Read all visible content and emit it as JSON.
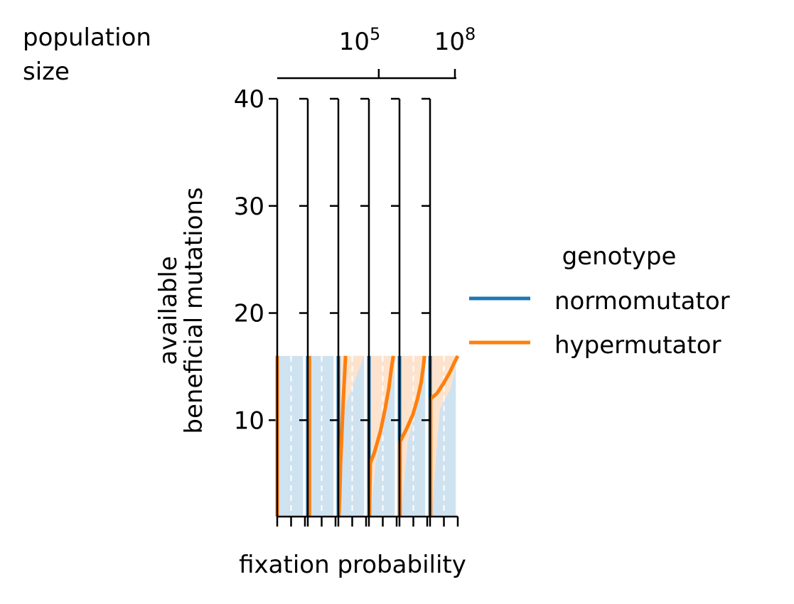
{
  "colors": {
    "normomutator": "#1f77b4",
    "hypermutator": "#ff7f0e",
    "normomutator_fill": "#cfe2f0",
    "hypermutator_fill": "#fde3cd",
    "axis": "#000000",
    "background": "#ffffff"
  },
  "chart_data": {
    "type": "line",
    "title": "",
    "top_axis": {
      "label_lines": [
        "population",
        "size"
      ],
      "scale": "log",
      "tick_labels": [
        {
          "base": "10",
          "exp": "5",
          "value": 100000
        },
        {
          "base": "10",
          "exp": "8",
          "value": 100000000
        }
      ],
      "range": [
        10,
        100000000
      ]
    },
    "yaxis": {
      "label_lines": [
        "available",
        "beneficial mutations"
      ],
      "ticks": [
        10,
        20,
        30,
        40
      ],
      "tick_labels": [
        "10",
        "20",
        "30",
        "40"
      ],
      "range": [
        1,
        40
      ]
    },
    "xaxis": {
      "label": "fixation probability",
      "range": [
        0,
        1
      ],
      "minor_ticks": [
        0,
        0.5,
        1
      ]
    },
    "panels": [
      {
        "population_size": 10,
        "normomutator": [
          [
            0.0,
            1
          ],
          [
            0.0,
            16
          ]
        ],
        "hypermutator": [
          [
            0.0,
            1
          ],
          [
            0.0,
            16
          ]
        ],
        "normomutator_band": [
          [
            1,
            0.0,
            0.93
          ],
          [
            16,
            0.0,
            0.93
          ]
        ],
        "hypermutator_band": [
          [
            1,
            0.0,
            0.02
          ],
          [
            16,
            0.0,
            0.02
          ]
        ]
      },
      {
        "population_size": 100,
        "normomutator": [
          [
            0.0,
            1
          ],
          [
            0.0,
            16
          ]
        ],
        "hypermutator": [
          [
            0.06,
            1
          ],
          [
            0.06,
            16
          ]
        ],
        "normomutator_band": [
          [
            1,
            0.0,
            0.93
          ],
          [
            16,
            0.0,
            0.93
          ]
        ],
        "hypermutator_band": [
          [
            1,
            0.0,
            0.08
          ],
          [
            16,
            0.0,
            0.08
          ]
        ]
      },
      {
        "population_size": 1000,
        "normomutator": [
          [
            0.0,
            1
          ],
          [
            0.0,
            16
          ]
        ],
        "hypermutator": [
          [
            0.02,
            1
          ],
          [
            0.05,
            3
          ],
          [
            0.08,
            6
          ],
          [
            0.13,
            9
          ],
          [
            0.18,
            12
          ],
          [
            0.22,
            14
          ],
          [
            0.26,
            16
          ]
        ],
        "normomutator_band": [
          [
            1,
            0.0,
            0.93
          ],
          [
            16,
            0.0,
            0.93
          ]
        ],
        "hypermutator_band": [
          [
            1,
            0.0,
            0.03
          ],
          [
            6,
            0.0,
            0.1
          ],
          [
            11,
            0.0,
            0.2
          ],
          [
            16,
            0.0,
            0.93
          ]
        ]
      },
      {
        "population_size": 10000,
        "normomutator": [
          [
            0.0,
            1
          ],
          [
            0.0,
            16
          ]
        ],
        "hypermutator": [
          [
            0.02,
            1
          ],
          [
            0.05,
            6
          ],
          [
            0.2,
            7
          ],
          [
            0.42,
            9
          ],
          [
            0.58,
            11
          ],
          [
            0.72,
            13
          ],
          [
            0.82,
            15
          ],
          [
            0.88,
            16
          ]
        ],
        "normomutator_band": [
          [
            1,
            0.0,
            0.93
          ],
          [
            16,
            0.0,
            0.93
          ]
        ],
        "hypermutator_band": [
          [
            1,
            0.0,
            0.05
          ],
          [
            6,
            0.0,
            0.25
          ],
          [
            11,
            0.0,
            0.65
          ],
          [
            16,
            0.0,
            1.0
          ]
        ]
      },
      {
        "population_size": 100000,
        "normomutator": [
          [
            0.0,
            1
          ],
          [
            0.0,
            16
          ]
        ],
        "hypermutator": [
          [
            0.02,
            1
          ],
          [
            0.02,
            8
          ],
          [
            0.22,
            9
          ],
          [
            0.48,
            10.5
          ],
          [
            0.65,
            12
          ],
          [
            0.78,
            13.5
          ],
          [
            0.86,
            15
          ],
          [
            0.9,
            16
          ]
        ],
        "normomutator_band": [
          [
            1,
            0.0,
            0.93
          ],
          [
            16,
            0.0,
            0.93
          ]
        ],
        "hypermutator_band": [
          [
            1,
            0.0,
            0.05
          ],
          [
            8,
            0.0,
            0.3
          ],
          [
            12,
            0.0,
            0.7
          ],
          [
            16,
            0.0,
            1.0
          ]
        ]
      },
      {
        "population_size": 1000000,
        "normomutator": [
          [
            0.0,
            1
          ],
          [
            0.0,
            16
          ]
        ],
        "hypermutator": [
          [
            0.02,
            1
          ],
          [
            0.02,
            12
          ],
          [
            0.25,
            12.5
          ],
          [
            0.5,
            13.5
          ],
          [
            0.72,
            14.5
          ],
          [
            0.9,
            15.5
          ],
          [
            1.0,
            16
          ]
        ],
        "normomutator_band": [
          [
            1,
            0.0,
            0.93
          ],
          [
            16,
            0.0,
            0.93
          ]
        ],
        "hypermutator_band": [
          [
            1,
            0.0,
            0.05
          ],
          [
            11,
            0.0,
            0.35
          ],
          [
            13,
            0.0,
            0.75
          ],
          [
            16,
            0.0,
            1.0
          ]
        ]
      }
    ],
    "legend": {
      "title": "genotype",
      "position": "right",
      "entries": [
        {
          "label": "normomutator",
          "color": "#1f77b4"
        },
        {
          "label": "hypermutator",
          "color": "#ff7f0e"
        }
      ]
    }
  }
}
